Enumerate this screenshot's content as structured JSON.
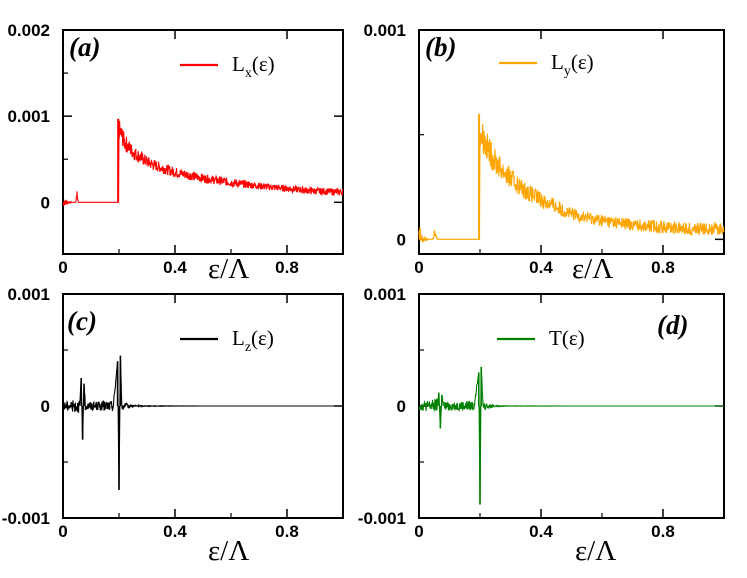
{
  "chart_data": [
    {
      "id": "a",
      "type": "line",
      "panel_label": "(a)",
      "xlabel": "",
      "xlim": [
        0,
        1.0
      ],
      "ylim": [
        -0.0006,
        0.002
      ],
      "xticks": [
        0,
        0.4,
        0.8
      ],
      "xtick_labels": [
        "0",
        "0.4",
        "0.8"
      ],
      "yticks": [
        0,
        0.001,
        0.002
      ],
      "ytick_labels": [
        "0",
        "0.001",
        "0.002"
      ],
      "legend": {
        "base": "L",
        "sub": "x",
        "args": "(ε)",
        "position": "top-right"
      },
      "series": [
        {
          "name": "Lx(ε)",
          "color": "#ff0000",
          "x": [
            0,
            0.01,
            0.03,
            0.045,
            0.05,
            0.055,
            0.07,
            0.1,
            0.15,
            0.19,
            0.198,
            0.2,
            0.22,
            0.25,
            0.3,
            0.35,
            0.4,
            0.5,
            0.6,
            0.7,
            0.8,
            0.9,
            1.0
          ],
          "y": [
            0,
            0,
            0,
            0,
            9e-05,
            0,
            0,
            0,
            0,
            0,
            0,
            0.00085,
            0.0007,
            0.00058,
            0.00047,
            0.0004,
            0.00035,
            0.00028,
            0.00023,
            0.00019,
            0.00016,
            0.00013,
            0.00012
          ],
          "noise": [
            6e-05,
            3e-05,
            0,
            0,
            5e-05,
            0,
            0,
            0,
            0,
            0,
            0,
            0.00012,
            0.0001,
            8e-05,
            7e-05,
            6e-05,
            6e-05,
            5e-05,
            5e-05,
            4e-05,
            4e-05,
            4e-05,
            4e-05
          ]
        }
      ]
    },
    {
      "id": "b",
      "type": "line",
      "panel_label": "(b)",
      "xlabel": "ε/Λ",
      "xlim": [
        0,
        1.0
      ],
      "ylim": [
        -7e-05,
        0.001
      ],
      "xticks": [
        0,
        0.4,
        0.8
      ],
      "xtick_labels": [
        "0",
        "0.4",
        "0.8"
      ],
      "yticks": [
        0,
        0.001
      ],
      "ytick_labels": [
        "0",
        "0.001"
      ],
      "legend": {
        "base": "L",
        "sub": "y",
        "args": "(ε)",
        "position": "top-right"
      },
      "series": [
        {
          "name": "Ly(ε)",
          "color": "#ffa500",
          "x": [
            0,
            0.01,
            0.03,
            0.045,
            0.05,
            0.06,
            0.1,
            0.15,
            0.19,
            0.198,
            0.2,
            0.22,
            0.25,
            0.3,
            0.35,
            0.4,
            0.5,
            0.6,
            0.7,
            0.8,
            0.9,
            1.0
          ],
          "y": [
            0,
            0,
            0,
            0,
            3e-05,
            0,
            0,
            0,
            0,
            0,
            0.00052,
            0.00045,
            0.00037,
            0.00029,
            0.00023,
            0.00019,
            0.00012,
            9e-05,
            7e-05,
            6e-05,
            5e-05,
            5e-05
          ],
          "noise": [
            9e-05,
            3e-05,
            0,
            0,
            3e-05,
            0,
            0,
            0,
            0,
            0,
            8e-05,
            7e-05,
            6e-05,
            5e-05,
            4e-05,
            4e-05,
            3e-05,
            3e-05,
            3e-05,
            3e-05,
            3e-05,
            3e-05
          ]
        }
      ]
    },
    {
      "id": "c",
      "type": "line",
      "panel_label": "(c)",
      "xlabel": "",
      "xlim": [
        0,
        1.0
      ],
      "ylim": [
        -0.001,
        0.001
      ],
      "xticks": [
        0,
        0.4,
        0.8
      ],
      "xtick_labels": [
        "0",
        "0.4",
        "0.8"
      ],
      "yticks": [
        -0.001,
        0,
        0.001
      ],
      "ytick_labels": [
        "-0.001",
        "0",
        "0.001"
      ],
      "legend": {
        "base": "L",
        "sub": "z",
        "args": "(ε)",
        "position": "top-right"
      },
      "series": [
        {
          "name": "Lz(ε)",
          "color": "#000000",
          "x": [
            0,
            0.03,
            0.06,
            0.065,
            0.07,
            0.075,
            0.08,
            0.12,
            0.18,
            0.195,
            0.2,
            0.205,
            0.21,
            0.23,
            0.25,
            0.3,
            0.5,
            0.8,
            1.0
          ],
          "y": [
            0,
            0,
            0,
            0.00025,
            -0.0003,
            0.0002,
            0,
            0,
            0,
            0.0004,
            -0.00075,
            0.00045,
            0,
            0,
            0,
            0,
            0,
            0,
            0
          ],
          "noise": [
            4e-05,
            5e-05,
            6e-05,
            0,
            0,
            0,
            4e-05,
            4e-05,
            5e-05,
            0,
            0,
            0,
            4e-05,
            2e-05,
            8e-06,
            3e-06,
            0,
            0,
            0
          ]
        }
      ]
    },
    {
      "id": "d",
      "type": "line",
      "panel_label": "(d)",
      "xlabel": "ε/Λ",
      "xlim": [
        0,
        1.0
      ],
      "ylim": [
        -0.001,
        0.001
      ],
      "xticks": [
        0,
        0.4,
        0.8
      ],
      "xtick_labels": [
        "0",
        "0.4",
        "0.8"
      ],
      "yticks": [
        -0.001,
        0,
        0.001
      ],
      "ytick_labels": [
        "-0.001",
        "0",
        "0.001"
      ],
      "legend": {
        "base": "T",
        "sub": "",
        "args": "(ε)",
        "position": "top-right"
      },
      "series": [
        {
          "name": "T(ε)",
          "color": "#008000",
          "x": [
            0,
            0.03,
            0.06,
            0.065,
            0.07,
            0.075,
            0.08,
            0.12,
            0.18,
            0.196,
            0.2,
            0.204,
            0.21,
            0.23,
            0.25,
            0.3,
            0.5,
            0.8,
            1.0
          ],
          "y": [
            0,
            0,
            0,
            0.00012,
            -0.0002,
            0.0001,
            0,
            0,
            0,
            0.0003,
            -0.00088,
            0.00035,
            0,
            0,
            0,
            0,
            0,
            0,
            0
          ],
          "noise": [
            4e-05,
            5e-05,
            6e-05,
            0,
            0,
            0,
            4e-05,
            4e-05,
            5e-05,
            0,
            0,
            0,
            4e-05,
            2e-05,
            6e-06,
            2e-06,
            0,
            0,
            0
          ]
        }
      ]
    }
  ]
}
